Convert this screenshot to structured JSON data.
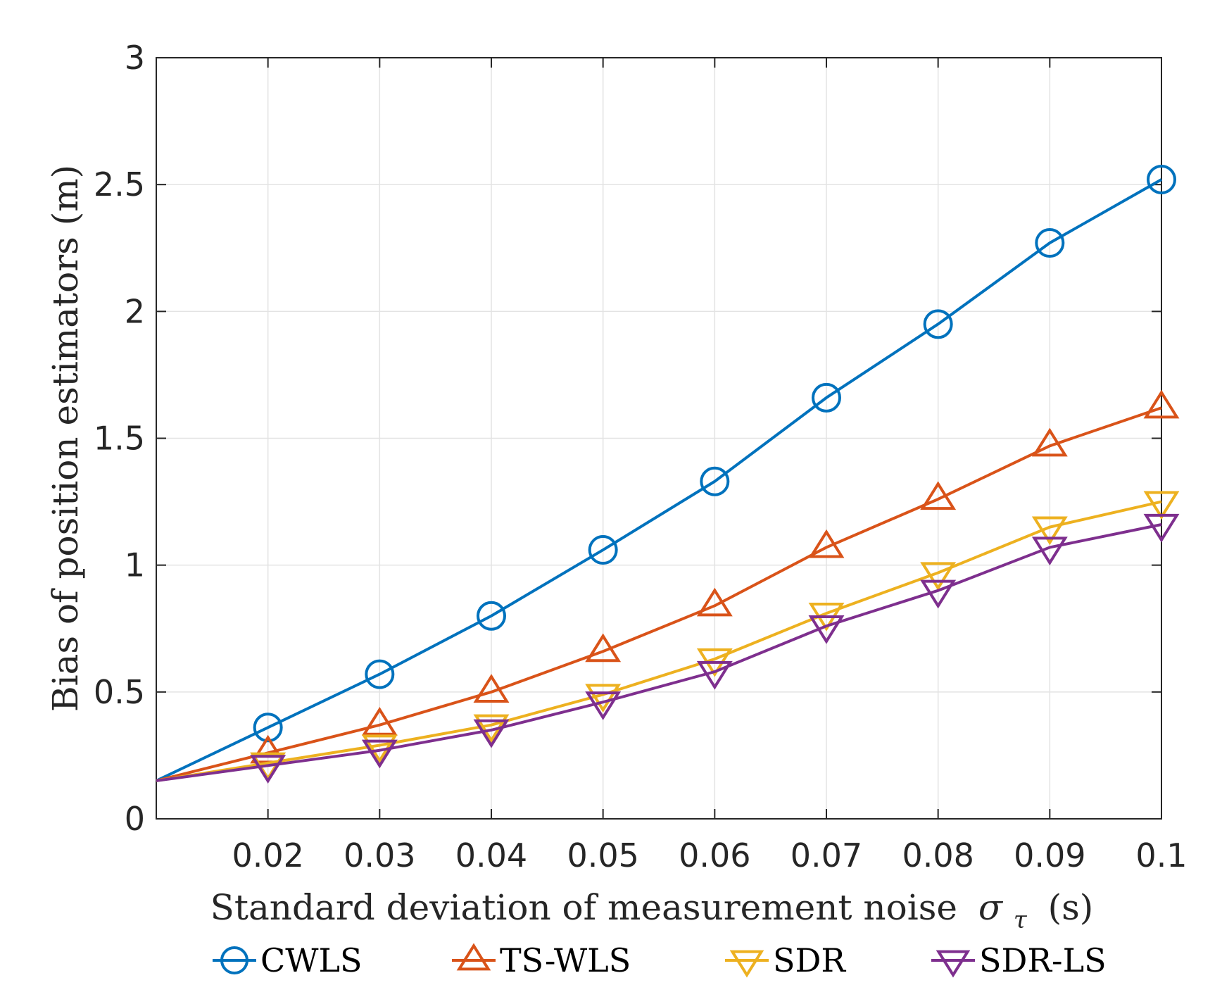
{
  "chart_data": {
    "type": "line",
    "title": "",
    "xlabel": "Standard deviation of measurement noise",
    "xlabel_symbol": "σ",
    "xlabel_subscript": "τ",
    "xlabel_unit": "(s)",
    "ylabel": "Bias of position estimators (m)",
    "xlim": [
      0.01,
      0.1
    ],
    "ylim": [
      0,
      3
    ],
    "grid": true,
    "legend_position": "bottom",
    "x": [
      0.01,
      0.02,
      0.03,
      0.04,
      0.05,
      0.06,
      0.07,
      0.08,
      0.09,
      0.1
    ],
    "xticks": [
      "0.02",
      "0.03",
      "0.04",
      "0.05",
      "0.06",
      "0.07",
      "0.08",
      "0.09",
      "0.1"
    ],
    "yticks": [
      "0",
      "0.5",
      "1",
      "1.5",
      "2",
      "2.5",
      "3"
    ],
    "series": [
      {
        "name": "CWLS",
        "color": "#0072BD",
        "marker": "circle",
        "values": [
          0.15,
          0.36,
          0.57,
          0.8,
          1.06,
          1.33,
          1.66,
          1.95,
          2.27,
          2.52
        ]
      },
      {
        "name": "TS-WLS",
        "color": "#D95319",
        "marker": "triangle-up",
        "values": [
          0.15,
          0.26,
          0.37,
          0.5,
          0.66,
          0.84,
          1.07,
          1.26,
          1.47,
          1.62
        ]
      },
      {
        "name": "SDR",
        "color": "#EDB120",
        "marker": "triangle-down",
        "values": [
          0.15,
          0.22,
          0.29,
          0.37,
          0.49,
          0.63,
          0.81,
          0.97,
          1.15,
          1.25
        ]
      },
      {
        "name": "SDR-LS",
        "color": "#7E2F8E",
        "marker": "triangle-down",
        "values": [
          0.15,
          0.21,
          0.27,
          0.35,
          0.46,
          0.58,
          0.76,
          0.9,
          1.07,
          1.16
        ]
      }
    ]
  }
}
